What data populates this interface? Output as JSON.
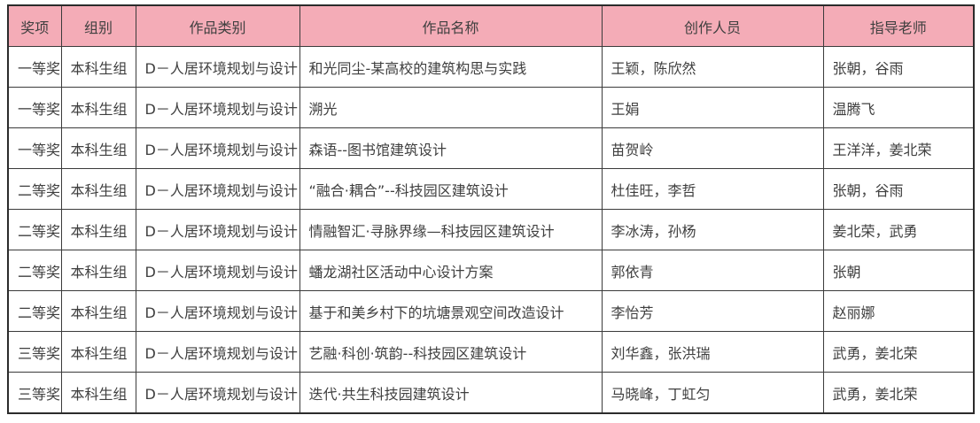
{
  "colors": {
    "header_bg": "#f4acb7",
    "border": "#3b3b3b",
    "outer_border": "#2b2b2b",
    "text": "#3f3f3f"
  },
  "table": {
    "headers": [
      {
        "key": "award",
        "label": "奖项"
      },
      {
        "key": "group",
        "label": "组别"
      },
      {
        "key": "category",
        "label": "作品类别"
      },
      {
        "key": "title",
        "label": "作品名称"
      },
      {
        "key": "creators",
        "label": "创作人员"
      },
      {
        "key": "teachers",
        "label": "指导老师"
      }
    ],
    "rows": [
      {
        "award": "一等奖",
        "group": "本科生组",
        "category": "D－人居环境规划与设计",
        "title": "和光同尘-某高校的建筑构思与实践",
        "creators": "王颖，陈欣然",
        "teachers": "张朝，谷雨"
      },
      {
        "award": "一等奖",
        "group": "本科生组",
        "category": "D－人居环境规划与设计",
        "title": "溯光",
        "creators": "王娟",
        "teachers": "温腾飞"
      },
      {
        "award": "一等奖",
        "group": "本科生组",
        "category": "D－人居环境规划与设计",
        "title": "森语--图书馆建筑设计",
        "creators": "苗贺岭",
        "teachers": "王洋洋，姜北荣"
      },
      {
        "award": "二等奖",
        "group": "本科生组",
        "category": "D－人居环境规划与设计",
        "title": "“融合·耦合”--科技园区建筑设计",
        "creators": "杜佳旺，李哲",
        "teachers": "张朝，谷雨"
      },
      {
        "award": "二等奖",
        "group": "本科生组",
        "category": "D－人居环境规划与设计",
        "title": "情融智汇·寻脉界缘—科技园区建筑设计",
        "creators": "李冰涛，孙杨",
        "teachers": "姜北荣，武勇"
      },
      {
        "award": "二等奖",
        "group": "本科生组",
        "category": "D－人居环境规划与设计",
        "title": "蟠龙湖社区活动中心设计方案",
        "creators": "郭依青",
        "teachers": "张朝"
      },
      {
        "award": "二等奖",
        "group": "本科生组",
        "category": "D－人居环境规划与设计",
        "title": "基于和美乡村下的坑塘景观空间改造设计",
        "creators": "李怡芳",
        "teachers": "赵丽娜"
      },
      {
        "award": "三等奖",
        "group": "本科生组",
        "category": "D－人居环境规划与设计",
        "title": "艺融·科创·筑韵--科技园区建筑设计",
        "creators": "刘华鑫，张洪瑞",
        "teachers": "武勇，姜北荣"
      },
      {
        "award": "三等奖",
        "group": "本科生组",
        "category": "D－人居环境规划与设计",
        "title": "迭代·共生科技园建筑设计",
        "creators": "马晓峰，丁虹匀",
        "teachers": "武勇，姜北荣"
      }
    ]
  }
}
